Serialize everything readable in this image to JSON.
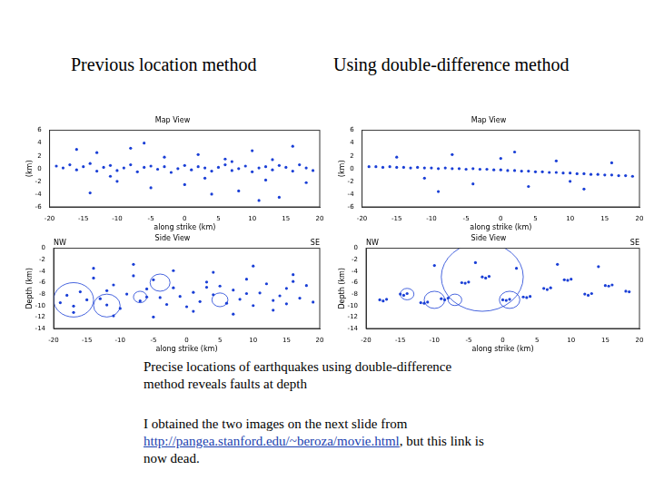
{
  "slide": {
    "headings": [
      "Previous location method",
      "Using double-difference method"
    ],
    "caption": "Precise locations of earthquakes using double-difference method reveals faults at depth",
    "note_before": "I obtained the two images on the next slide from ",
    "link": "http://pangea.stanford.edu/~beroza/movie.html",
    "note_after": ", but this link is now dead."
  },
  "chart_data": [
    {
      "type": "scatter",
      "title": "Map View",
      "x_label": "along strike (km)",
      "y_label": "(km)",
      "xlim": [
        -20,
        20
      ],
      "xticks": [
        -20,
        -15,
        -10,
        -5,
        0,
        5,
        10,
        15,
        20
      ],
      "ylim": [
        -6,
        6
      ],
      "yticks": [
        -6,
        -4,
        -2,
        0,
        2,
        4,
        6
      ],
      "color": "#1a3fd6",
      "marker": "circle",
      "x": [
        -19,
        -18,
        -17,
        -16,
        -15,
        -14,
        -13,
        -12,
        -11,
        -10,
        -9,
        -8,
        -7,
        -6,
        -5,
        -4,
        -3,
        -2,
        -1,
        0,
        1,
        2,
        3,
        4,
        5,
        6,
        7,
        8,
        9,
        10,
        11,
        12,
        13,
        14,
        15,
        16,
        17,
        18,
        19,
        -16,
        -13,
        -10,
        -8,
        -5,
        -3,
        0,
        2,
        4,
        6,
        8,
        10,
        12,
        14,
        16,
        18,
        -14,
        -6,
        3,
        11,
        -11,
        7,
        13
      ],
      "y": [
        0.4,
        0.1,
        0.6,
        -0.2,
        0.3,
        0.8,
        -0.4,
        0.2,
        0.5,
        -0.3,
        0.1,
        0.6,
        -0.5,
        0.2,
        0.4,
        -0.1,
        0.3,
        -0.6,
        0.0,
        0.5,
        -0.2,
        0.3,
        0.1,
        -0.4,
        0.2,
        0.6,
        -0.3,
        0.0,
        0.4,
        -0.5,
        0.1,
        0.3,
        -0.2,
        0.5,
        0.2,
        -0.4,
        0.6,
        0.1,
        -0.3,
        3.0,
        2.5,
        -2.0,
        3.2,
        -3.0,
        1.8,
        -2.5,
        2.2,
        -4.0,
        1.5,
        -3.5,
        2.8,
        -1.8,
        -4.5,
        3.5,
        -2.2,
        -3.8,
        4.0,
        -1.5,
        -5.0,
        -1.2,
        1.1,
        1.4
      ]
    },
    {
      "type": "scatter",
      "title": "Map View",
      "x_label": "along strike (km)",
      "y_label": "(km)",
      "xlim": [
        -20,
        20
      ],
      "xticks": [
        -20,
        -15,
        -10,
        -5,
        0,
        5,
        10,
        15,
        20
      ],
      "ylim": [
        -6,
        6
      ],
      "yticks": [
        -6,
        -4,
        -2,
        0,
        2,
        4,
        6
      ],
      "color": "#1a3fd6",
      "marker": "circle",
      "x": [
        -19,
        -18,
        -17,
        -16,
        -15,
        -14,
        -13,
        -12,
        -11,
        -10,
        -9,
        -8,
        -7,
        -6,
        -5,
        -4,
        -3,
        -2,
        -1,
        0,
        1,
        2,
        3,
        4,
        5,
        6,
        7,
        8,
        9,
        10,
        11,
        12,
        13,
        14,
        15,
        16,
        17,
        18,
        19,
        -15,
        -11,
        -7,
        -4,
        0,
        4,
        8,
        12,
        16,
        -9,
        2,
        10
      ],
      "y": [
        0.3,
        0.3,
        0.2,
        0.3,
        0.2,
        0.2,
        0.1,
        0.2,
        0.1,
        0.1,
        0.0,
        0.1,
        0.0,
        0.0,
        -0.1,
        0.0,
        -0.1,
        -0.1,
        -0.2,
        -0.2,
        -0.3,
        -0.3,
        -0.4,
        -0.4,
        -0.5,
        -0.5,
        -0.6,
        -0.6,
        -0.7,
        -0.7,
        -0.8,
        -0.8,
        -0.9,
        -0.9,
        -1.0,
        -1.0,
        -1.1,
        -1.1,
        -1.2,
        1.8,
        -1.5,
        2.2,
        -2.4,
        1.6,
        -2.8,
        1.2,
        -3.2,
        0.9,
        -3.6,
        2.6,
        -2.0
      ]
    },
    {
      "type": "scatter",
      "title": "Side View",
      "x_label": "along strike (km)",
      "y_label": "Depth (km)",
      "annotations": [
        "NW",
        "SE"
      ],
      "xlim": [
        -20,
        20
      ],
      "xticks": [
        -20,
        -15,
        -10,
        -5,
        0,
        5,
        10,
        15,
        20
      ],
      "ylim": [
        -14,
        0
      ],
      "yticks": [
        -14,
        -12,
        -10,
        -8,
        -6,
        -4,
        -2,
        0
      ],
      "color": "#1a3fd6",
      "marker": "circle",
      "x": [
        -19,
        -18,
        -17,
        -16,
        -15,
        -14,
        -13,
        -12,
        -11,
        -10,
        -9,
        -8,
        -7,
        -6,
        -5,
        -4,
        -3,
        -2,
        -1,
        0,
        1,
        2,
        3,
        4,
        5,
        6,
        7,
        8,
        9,
        10,
        11,
        12,
        13,
        14,
        15,
        16,
        17,
        18,
        19,
        -17,
        -14,
        -11,
        -8,
        -5,
        -2,
        1,
        4,
        7,
        10,
        13,
        16,
        -12,
        -6,
        3,
        9,
        15
      ],
      "y": [
        -9.5,
        -8.2,
        -10.1,
        -7.6,
        -9.0,
        -5.2,
        -8.8,
        -9.9,
        -6.4,
        -10.5,
        -8.0,
        -4.8,
        -9.2,
        -7.1,
        -5.5,
        -8.6,
        -9.8,
        -6.9,
        -8.4,
        -10.2,
        -7.7,
        -9.3,
        -5.9,
        -8.1,
        -6.6,
        -9.6,
        -7.3,
        -8.9,
        -5.4,
        -10.0,
        -7.8,
        -6.2,
        -9.1,
        -8.3,
        -7.0,
        -5.8,
        -8.7,
        -6.5,
        -9.4,
        -11.2,
        -3.5,
        -11.8,
        -2.8,
        -12.0,
        -3.9,
        -11.0,
        -4.2,
        -11.5,
        -3.1,
        -10.8,
        -4.6,
        -7.4,
        -8.5,
        -6.8,
        -7.9,
        -9.7
      ],
      "circles": {
        "x": [
          -17,
          -12,
          -7,
          -4,
          5
        ],
        "y": [
          -9,
          -10,
          -8.5,
          -6,
          -9
        ],
        "radius": [
          3,
          2,
          1,
          1.5,
          1.2
        ]
      }
    },
    {
      "type": "scatter",
      "title": "Side View",
      "x_label": "along strike (km)",
      "y_label": "Depth (km)",
      "annotations": [
        "NW",
        "SE"
      ],
      "xlim": [
        -20,
        20
      ],
      "xticks": [
        -20,
        -15,
        -10,
        -5,
        0,
        5,
        10,
        15,
        20
      ],
      "ylim": [
        -14,
        0
      ],
      "yticks": [
        -14,
        -12,
        -10,
        -8,
        -6,
        -4,
        -2,
        0
      ],
      "color": "#1a3fd6",
      "marker": "circle",
      "x": [
        -18,
        -17.5,
        -17,
        -15,
        -14.5,
        -14,
        -12,
        -11.5,
        -11,
        -9,
        -8.5,
        -8,
        -6,
        -5.5,
        -5,
        -3,
        -2.5,
        -2,
        0,
        0.5,
        1,
        3,
        3.5,
        4,
        6,
        6.5,
        7,
        9,
        9.5,
        10,
        12,
        12.5,
        13,
        15,
        15.5,
        16,
        18,
        18.5,
        -10,
        -4,
        2,
        8,
        14
      ],
      "y": [
        -9.0,
        -9.2,
        -8.9,
        -8.0,
        -8.2,
        -7.9,
        -9.5,
        -9.6,
        -9.4,
        -8.8,
        -9.0,
        -8.7,
        -6.0,
        -6.1,
        -5.9,
        -5.0,
        -5.2,
        -4.9,
        -9.0,
        -9.1,
        -8.9,
        -8.5,
        -8.6,
        -8.4,
        -7.0,
        -7.2,
        -6.9,
        -5.5,
        -5.6,
        -5.4,
        -8.0,
        -8.2,
        -7.9,
        -6.5,
        -6.6,
        -6.4,
        -7.5,
        -7.6,
        -3.0,
        -2.5,
        -3.5,
        -2.8,
        -3.2
      ],
      "circles": {
        "x": [
          -3,
          -10,
          -7,
          1,
          -14
        ],
        "y": [
          -5,
          -9,
          -9,
          -9,
          -8
        ],
        "radius": [
          6,
          1.5,
          1,
          1.5,
          1
        ]
      }
    }
  ]
}
